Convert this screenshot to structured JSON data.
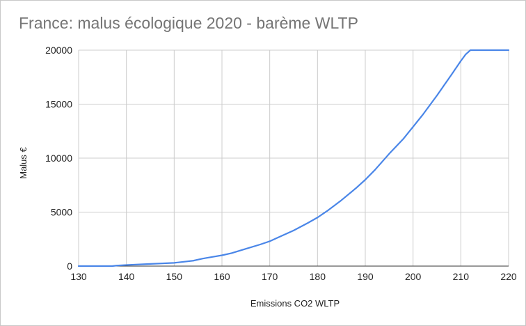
{
  "chart_data": {
    "type": "line",
    "title": "France: malus écologique 2020 - barème WLTP",
    "xlabel": "Emissions CO2 WLTP",
    "ylabel": "Malus €",
    "xlim": [
      130,
      220
    ],
    "ylim": [
      0,
      20000
    ],
    "xticks": [
      130,
      140,
      150,
      160,
      170,
      180,
      190,
      200,
      210,
      220
    ],
    "yticks": [
      0,
      5000,
      10000,
      15000,
      20000
    ],
    "grid": true,
    "legend": "none",
    "line_color": "#4a86e8",
    "series": [
      {
        "x": [
          130,
          137,
          138,
          140,
          145,
          150,
          152,
          154,
          155,
          156,
          158,
          160,
          162,
          165,
          168,
          170,
          172,
          175,
          178,
          180,
          182,
          185,
          188,
          190,
          192,
          195,
          198,
          200,
          202,
          205,
          208,
          210,
          211,
          212,
          213,
          220
        ],
        "values": [
          0,
          0,
          50,
          100,
          200,
          300,
          400,
          500,
          600,
          700,
          850,
          1000,
          1200,
          1600,
          2000,
          2300,
          2700,
          3300,
          4000,
          4500,
          5100,
          6100,
          7200,
          8000,
          8900,
          10400,
          11800,
          12900,
          14000,
          15800,
          17700,
          19000,
          19600,
          20000,
          20000,
          20000
        ]
      }
    ]
  }
}
